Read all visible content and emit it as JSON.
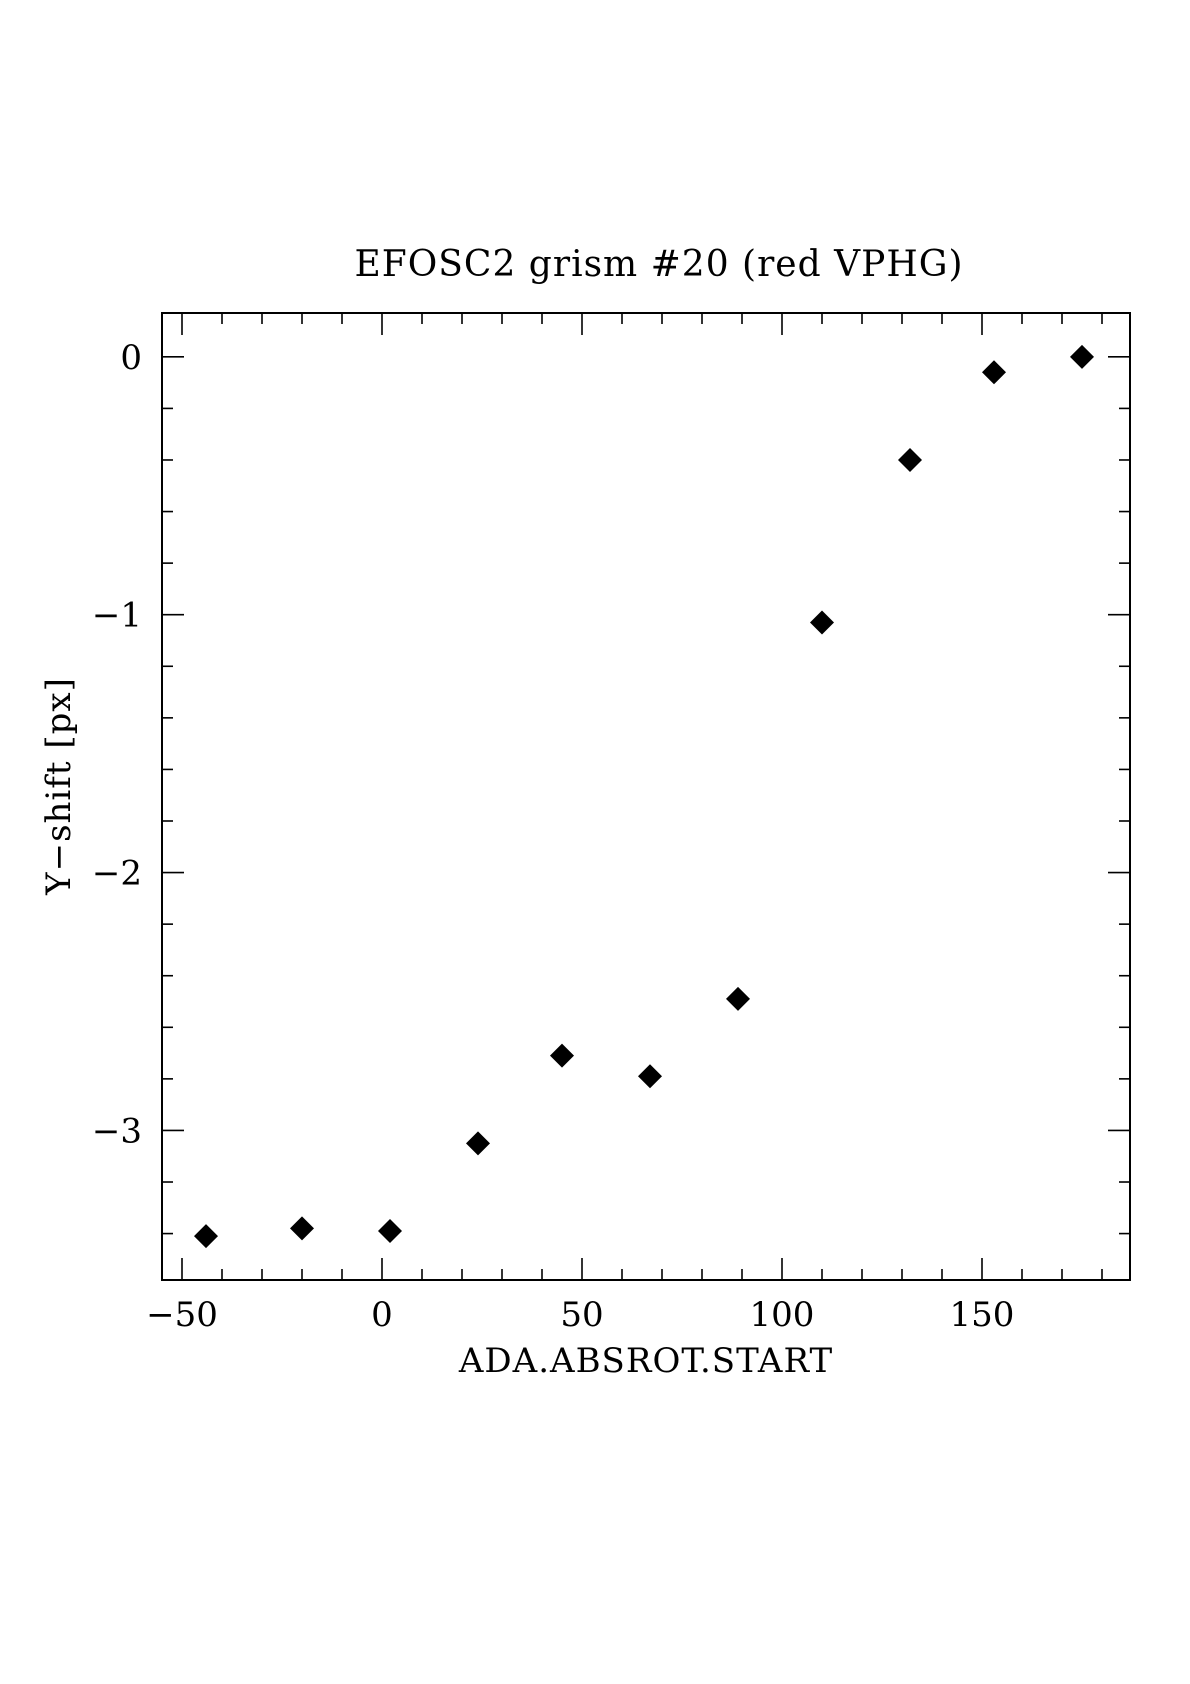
{
  "chart_data": {
    "type": "scatter",
    "title": "EFOSC2 grism #20 (red VPHG)",
    "xlabel": "ADA.ABSROT.START",
    "ylabel": "Y−shift [px]",
    "xlim": [
      -55,
      187
    ],
    "ylim": [
      -3.58,
      0.17
    ],
    "x_ticks": [
      -50,
      0,
      50,
      100,
      150
    ],
    "x_tick_labels": [
      "−50",
      "0",
      "50",
      "100",
      "150"
    ],
    "x_minor_step": 10,
    "y_ticks": [
      -3,
      -2,
      -1,
      0
    ],
    "y_tick_labels": [
      "−3",
      "−2",
      "−1",
      "0"
    ],
    "y_minor_step": 0.2,
    "grid": false,
    "marker": "diamond",
    "marker_color": "#000000",
    "series": [
      {
        "x": [
          -44,
          -20,
          2,
          24,
          45,
          67,
          89,
          110,
          132,
          153,
          175
        ],
        "y": [
          -3.41,
          -3.38,
          -3.39,
          -3.05,
          -2.71,
          -2.79,
          -2.49,
          -1.03,
          -0.4,
          -0.06,
          0.0
        ]
      }
    ]
  }
}
